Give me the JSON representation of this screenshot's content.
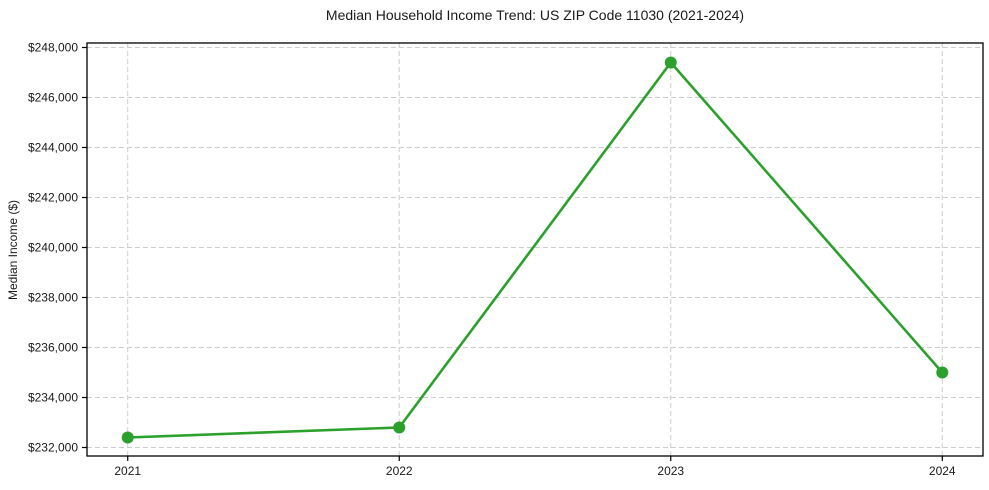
{
  "chart_data": {
    "type": "line",
    "title": "Median Household Income Trend: US ZIP Code 11030 (2021-2024)",
    "xlabel": "",
    "ylabel": "Median Income ($)",
    "categories": [
      "2021",
      "2022",
      "2023",
      "2024"
    ],
    "x": [
      2021,
      2022,
      2023,
      2024
    ],
    "values": [
      232400,
      232800,
      247400,
      235000
    ],
    "y_ticks": [
      {
        "value": 232000,
        "label": "$232,000"
      },
      {
        "value": 234000,
        "label": "$234,000"
      },
      {
        "value": 236000,
        "label": "$236,000"
      },
      {
        "value": 238000,
        "label": "$238,000"
      },
      {
        "value": 240000,
        "label": "$240,000"
      },
      {
        "value": 242000,
        "label": "$242,000"
      },
      {
        "value": 244000,
        "label": "$244,000"
      },
      {
        "value": 246000,
        "label": "$246,000"
      },
      {
        "value": 248000,
        "label": "$248,000"
      }
    ],
    "xlim": [
      2020.85,
      2024.15
    ],
    "ylim": [
      231660,
      248180
    ],
    "grid": true,
    "grid_style": "dashed",
    "legend": "none",
    "marker": "circle",
    "style": {
      "line_color": "#2ca02c",
      "marker_color": "#2ca02c",
      "grid_color": "#cccccc",
      "spine_color": "#000000",
      "tick_color": "#000000",
      "text_color": "#1a1a1a",
      "background": "#ffffff"
    }
  }
}
